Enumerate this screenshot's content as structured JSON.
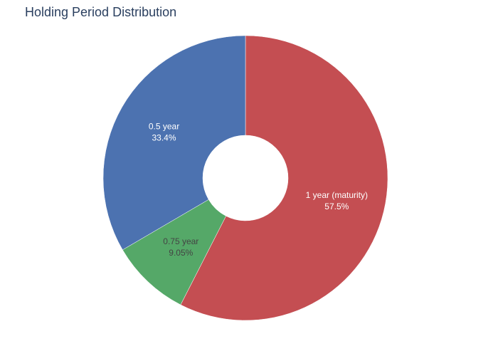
{
  "chart_data": {
    "type": "pie",
    "hole": true,
    "title": "Holding Period Distribution",
    "slices": [
      {
        "label": "1 year (maturity)",
        "value": 57.5,
        "percent_label": "57.5%",
        "color": "#c44e52",
        "text_color": "#ffffff"
      },
      {
        "label": "0.75 year",
        "value": 9.05,
        "percent_label": "9.05%",
        "color": "#55a868",
        "text_color": "#444444"
      },
      {
        "label": "0.5 year",
        "value": 33.4,
        "percent_label": "33.4%",
        "color": "#4c72b0",
        "text_color": "#ffffff"
      }
    ]
  }
}
